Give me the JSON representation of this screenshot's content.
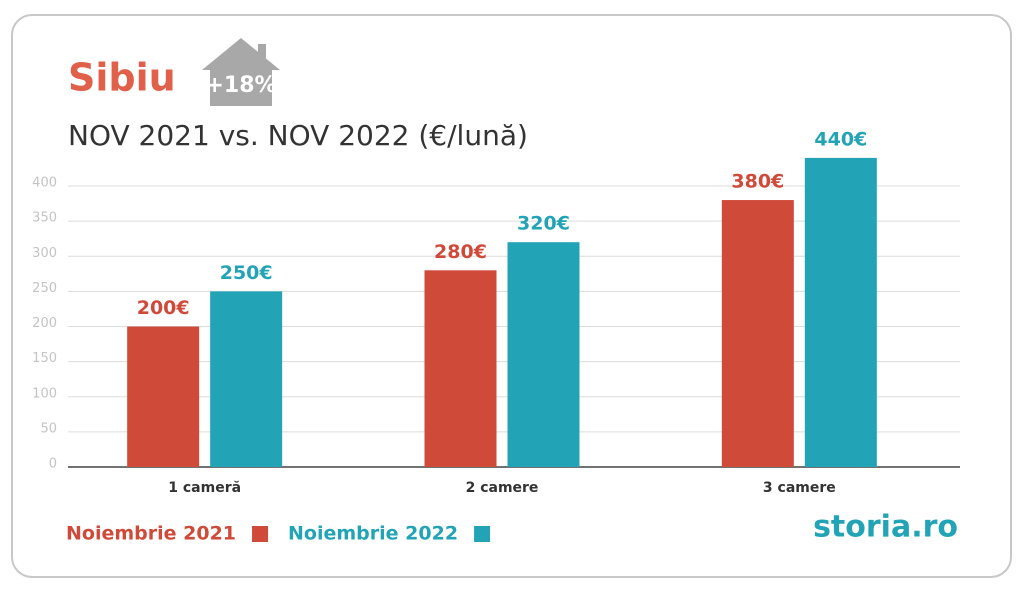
{
  "chart_data": {
    "type": "bar",
    "title": "Sibiu",
    "badge": "+18%",
    "subtitle": "NOV 2021 vs. NOV 2022 (€/lună)",
    "categories": [
      "1 cameră",
      "2 camere",
      "3 camere"
    ],
    "series": [
      {
        "name": "Noiembrie 2021",
        "color": "#d04a3a",
        "values": [
          200,
          280,
          380
        ],
        "value_labels": [
          "200€",
          "280€",
          "380€"
        ]
      },
      {
        "name": "Noiembrie 2022",
        "color": "#22a4b6",
        "values": [
          250,
          320,
          440
        ],
        "value_labels": [
          "250€",
          "320€",
          "440€"
        ]
      }
    ],
    "ylim": [
      0,
      400
    ],
    "yticks": [
      0,
      50,
      100,
      150,
      200,
      250,
      300,
      350,
      400
    ],
    "grid": true,
    "logo": "storia.ro"
  }
}
